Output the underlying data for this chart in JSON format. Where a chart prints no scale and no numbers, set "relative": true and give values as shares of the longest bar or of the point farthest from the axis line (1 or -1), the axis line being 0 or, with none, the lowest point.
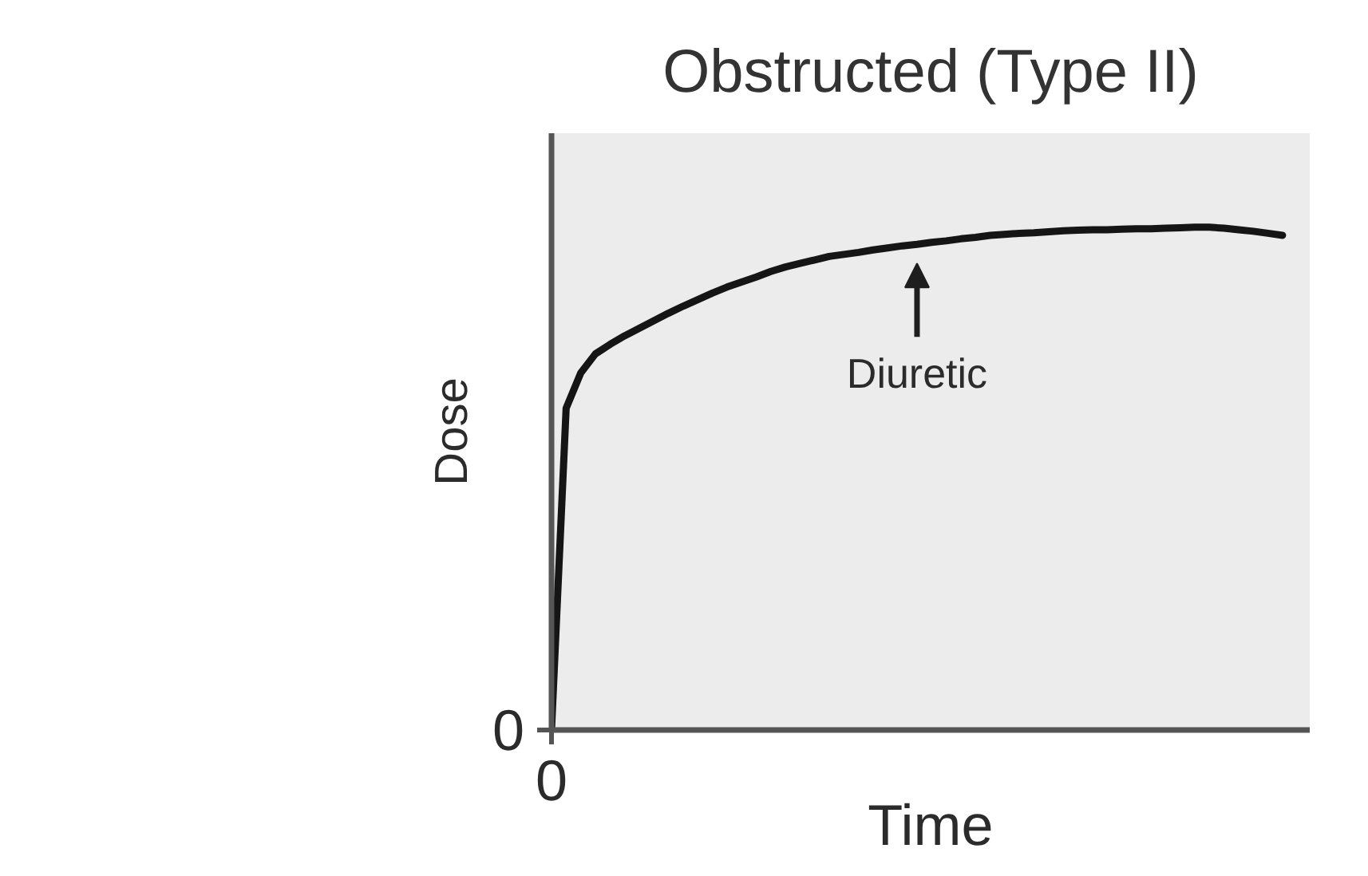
{
  "chart_data": {
    "type": "line",
    "title": "Obstructed (Type II)",
    "xlabel": "Time",
    "ylabel": "Dose",
    "relative": true,
    "categories": [
      null,
      null,
      null,
      null,
      null,
      null,
      null,
      null,
      null,
      null,
      null,
      null,
      null,
      null,
      null,
      null,
      null,
      null,
      null,
      null,
      null,
      null,
      null,
      null,
      null,
      null,
      null,
      null,
      null,
      null,
      null,
      null,
      null,
      null,
      null,
      null,
      null,
      null,
      null,
      null,
      null,
      null,
      null,
      null,
      null,
      null,
      null,
      null,
      null,
      null,
      null
    ],
    "values": [
      0,
      0.64,
      0.71,
      0.748,
      0.767,
      0.784,
      0.799,
      0.814,
      0.829,
      0.843,
      0.856,
      0.869,
      0.881,
      0.891,
      0.901,
      0.912,
      0.921,
      0.928,
      0.935,
      0.942,
      0.946,
      0.95,
      0.955,
      0.959,
      0.963,
      0.966,
      0.97,
      0.973,
      0.977,
      0.98,
      0.984,
      0.986,
      0.988,
      0.989,
      0.991,
      0.993,
      0.994,
      0.995,
      0.995,
      0.996,
      0.997,
      0.997,
      0.998,
      0.999,
      1,
      1,
      0.998,
      0.995,
      0.992,
      0.988,
      0.984
    ],
    "color": "#151515",
    "annotations": [
      "0",
      "0",
      {
        "text": "Diuretic",
        "y": 0.966
      }
    ]
  }
}
